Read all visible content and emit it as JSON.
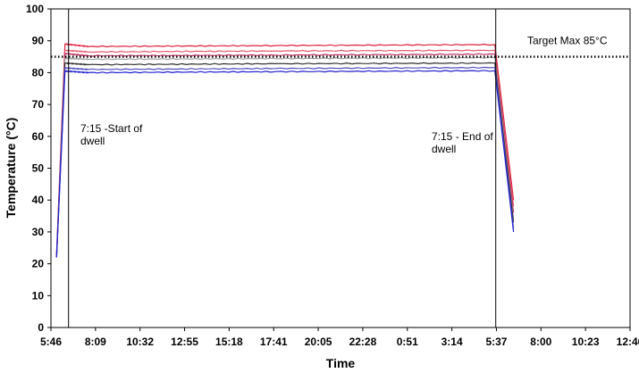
{
  "chart_data": {
    "type": "line",
    "xlabel": "Time",
    "ylabel": "Temperature (°C)",
    "ylim": [
      0,
      100
    ],
    "y_ticks": [
      "0",
      "10",
      "20",
      "30",
      "40",
      "50",
      "60",
      "70",
      "80",
      "90",
      "100"
    ],
    "x_ticks": [
      "5:46",
      "8:09",
      "10:32",
      "12:55",
      "15:18",
      "17:41",
      "20:05",
      "22:28",
      "0:51",
      "3:14",
      "5:37",
      "8:00",
      "10:23",
      "12:46"
    ],
    "grid": false,
    "legend": "none",
    "reference_line": {
      "label": "Target Max 85°C",
      "value": 85,
      "style": "dotted",
      "color": "#000000"
    },
    "markers": [
      {
        "time": "7:15",
        "label_lines": [
          "7:15 -Start of",
          "dwell"
        ]
      },
      {
        "time": "7:15",
        "label_lines": [
          "7:15 - End of",
          "dwell"
        ]
      }
    ],
    "series": [
      {
        "color": "#e0203c",
        "values": [
          23,
          89,
          88.2,
          88.5,
          88.8,
          40
        ]
      },
      {
        "color": "#e85a70",
        "values": [
          22.5,
          87,
          86.5,
          86.8,
          87,
          38
        ]
      },
      {
        "color": "#c03060",
        "values": [
          22.5,
          86,
          85.3,
          85.5,
          85.8,
          36
        ]
      },
      {
        "color": "#a0a0a0",
        "values": [
          22,
          84.5,
          84.2,
          84.4,
          84.7,
          34
        ]
      },
      {
        "color": "#303030",
        "values": [
          22,
          83,
          82.5,
          82.8,
          83,
          33
        ]
      },
      {
        "color": "#5050c0",
        "values": [
          22,
          81.5,
          81,
          81.3,
          81.6,
          31
        ]
      },
      {
        "color": "#2020d0",
        "values": [
          22,
          80.5,
          80,
          80.3,
          80.6,
          30
        ]
      }
    ],
    "x_positions_hours": [
      0.3,
      0.75,
      2,
      12,
      23.75,
      24.75
    ]
  }
}
